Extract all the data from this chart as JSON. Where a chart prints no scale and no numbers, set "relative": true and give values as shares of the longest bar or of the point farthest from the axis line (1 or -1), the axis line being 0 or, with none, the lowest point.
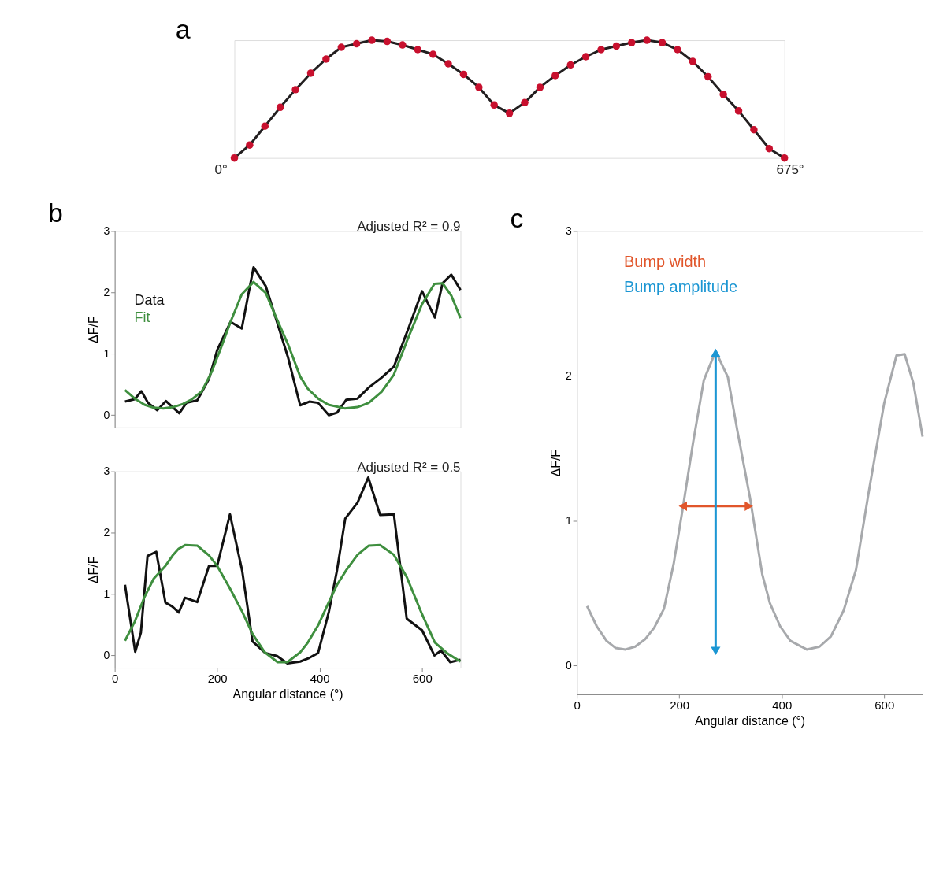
{
  "chart_data": [
    {
      "type": "line",
      "title": "a",
      "relative": true,
      "categories": [
        null,
        null,
        null,
        null,
        null,
        null,
        null,
        null,
        null,
        null,
        null,
        null,
        null,
        null,
        null,
        null,
        null,
        null,
        null,
        null,
        null,
        null,
        null,
        null,
        null,
        null,
        null,
        null,
        null,
        null,
        null,
        null,
        null,
        null,
        null,
        null,
        null
      ],
      "series": [
        {
          "color": "#231f20",
          "marker": "circle",
          "colors": [
            "#c8102e",
            "#c8102e",
            "#c8102e",
            "#c8102e",
            "#c8102e",
            "#c8102e",
            "#c8102e",
            "#c8102e",
            "#c8102e",
            "#c8102e",
            "#c8102e",
            "#c8102e",
            "#c8102e",
            "#c8102e",
            "#c8102e",
            "#c8102e",
            "#c8102e",
            "#c8102e",
            "#c8102e",
            "#c8102e",
            "#c8102e",
            "#c8102e",
            "#c8102e",
            "#c8102e",
            "#c8102e",
            "#c8102e",
            "#c8102e",
            "#c8102e",
            "#c8102e",
            "#c8102e",
            "#c8102e",
            "#c8102e",
            "#c8102e",
            "#c8102e",
            "#c8102e",
            "#c8102e",
            "#c8102e"
          ],
          "values": [
            0,
            0.11,
            0.27,
            0.43,
            0.58,
            0.72,
            0.84,
            0.94,
            0.97,
            1.0,
            0.99,
            0.96,
            0.92,
            0.88,
            0.8,
            0.71,
            0.6,
            0.45,
            0.38,
            0.47,
            0.6,
            0.7,
            0.79,
            0.86,
            0.92,
            0.95,
            0.98,
            1.0,
            0.98,
            0.92,
            0.82,
            0.69,
            0.54,
            0.4,
            0.24,
            0.08,
            0
          ]
        }
      ],
      "annotations": [
        "0°",
        "675°"
      ],
      "legend": false,
      "grid": false,
      "tick_labels": false
    },
    {
      "type": "line",
      "title": "b",
      "ylabel": "ΔF/F",
      "xlim": [
        0,
        675
      ],
      "ylim": [
        -0.2,
        3
      ],
      "yticks": [
        0,
        1,
        2,
        3
      ],
      "tick_labels": "y",
      "grid": false,
      "legend": "top left",
      "annotations": [
        "Adjusted R² = 0.9"
      ],
      "series": [
        {
          "name": "Data",
          "color": "#111111",
          "x": [
            20,
            39,
            52,
            65,
            83,
            100,
            126,
            140,
            161,
            184,
            200,
            226,
            248,
            271,
            295,
            338,
            362,
            380,
            397,
            418,
            434,
            452,
            474,
            496,
            521,
            545,
            575,
            600,
            625,
            640,
            657,
            675
          ],
          "values": [
            0.22,
            0.26,
            0.39,
            0.2,
            0.08,
            0.23,
            0.03,
            0.2,
            0.24,
            0.59,
            1.06,
            1.52,
            1.41,
            2.41,
            2.1,
            0.95,
            0.16,
            0.22,
            0.2,
            0.0,
            0.04,
            0.25,
            0.27,
            0.45,
            0.61,
            0.79,
            1.45,
            2.02,
            1.59,
            2.15,
            2.29,
            2.04
          ]
        },
        {
          "name": "Fit",
          "color": "#3f8f3f",
          "x": [
            20,
            39,
            58,
            76,
            95,
            114,
            133,
            151,
            170,
            189,
            208,
            227,
            248,
            271,
            295,
            313,
            338,
            362,
            377,
            397,
            417,
            449,
            474,
            496,
            521,
            545,
            570,
            600,
            624,
            640,
            657,
            675
          ],
          "values": [
            0.41,
            0.27,
            0.17,
            0.12,
            0.11,
            0.13,
            0.18,
            0.26,
            0.39,
            0.7,
            1.11,
            1.54,
            1.97,
            2.17,
            1.99,
            1.63,
            1.16,
            0.63,
            0.43,
            0.27,
            0.17,
            0.11,
            0.13,
            0.2,
            0.38,
            0.66,
            1.2,
            1.81,
            2.14,
            2.15,
            1.95,
            1.58
          ]
        }
      ]
    },
    {
      "type": "line",
      "ylabel": "ΔF/F",
      "xlabel": "Angular distance (°)",
      "xlim": [
        0,
        675
      ],
      "xticks": [
        0,
        200,
        400,
        600
      ],
      "ylim": [
        -0.2,
        3
      ],
      "yticks": [
        0,
        1,
        2,
        3
      ],
      "grid": false,
      "legend": false,
      "annotations": [
        "Adjusted R² = 0.5"
      ],
      "series": [
        {
          "color": "#111111",
          "x": [
            20,
            40,
            51,
            64,
            81,
            99,
            112,
            125,
            137,
            161,
            184,
            200,
            225,
            249,
            269,
            294,
            317,
            337,
            362,
            380,
            397,
            418,
            434,
            450,
            474,
            495,
            518,
            545,
            570,
            600,
            624,
            637,
            655,
            675
          ],
          "values": [
            1.15,
            0.06,
            0.37,
            1.62,
            1.69,
            0.86,
            0.8,
            0.7,
            0.94,
            0.87,
            1.46,
            1.46,
            2.3,
            1.37,
            0.23,
            0.04,
            -0.01,
            -0.13,
            -0.1,
            -0.04,
            0.04,
            0.71,
            1.39,
            2.23,
            2.49,
            2.9,
            2.29,
            2.3,
            0.6,
            0.41,
            0.0,
            0.08,
            -0.11,
            -0.07
          ]
        },
        {
          "color": "#3f8f3f",
          "x": [
            20,
            39,
            58,
            76,
            99,
            114,
            125,
            138,
            161,
            184,
            200,
            227,
            249,
            269,
            293,
            318,
            337,
            362,
            377,
            397,
            418,
            434,
            452,
            474,
            496,
            518,
            545,
            570,
            600,
            625,
            650,
            675
          ],
          "values": [
            0.24,
            0.55,
            0.95,
            1.25,
            1.46,
            1.64,
            1.74,
            1.8,
            1.79,
            1.63,
            1.46,
            1.06,
            0.71,
            0.35,
            0.05,
            -0.11,
            -0.11,
            0.05,
            0.21,
            0.49,
            0.87,
            1.15,
            1.39,
            1.64,
            1.79,
            1.8,
            1.64,
            1.28,
            0.67,
            0.21,
            0.03,
            -0.1
          ]
        }
      ]
    },
    {
      "type": "line",
      "title": "c",
      "ylabel": "ΔF/F",
      "xlabel": "Angular distance (°)",
      "xlim": [
        0,
        675
      ],
      "xticks": [
        0,
        200,
        400,
        600
      ],
      "ylim": [
        -0.2,
        3
      ],
      "yticks": [
        0,
        1,
        2,
        3
      ],
      "grid": false,
      "legend": "top left",
      "series": [
        {
          "color": "#a7a9ac",
          "x": [
            20,
            39,
            58,
            76,
            95,
            114,
            133,
            151,
            170,
            189,
            208,
            227,
            248,
            271,
            295,
            313,
            338,
            362,
            377,
            397,
            417,
            449,
            474,
            496,
            521,
            545,
            570,
            600,
            624,
            640,
            657,
            675
          ],
          "values": [
            0.41,
            0.27,
            0.17,
            0.12,
            0.11,
            0.13,
            0.18,
            0.26,
            0.39,
            0.7,
            1.11,
            1.54,
            1.97,
            2.17,
            1.99,
            1.63,
            1.16,
            0.63,
            0.43,
            0.27,
            0.17,
            0.11,
            0.13,
            0.2,
            0.38,
            0.66,
            1.2,
            1.81,
            2.14,
            2.15,
            1.95,
            1.58
          ]
        },
        {
          "name": "Bump width",
          "color": "#e1562b",
          "marker": "triangle",
          "x": [
            207,
            336
          ],
          "values": [
            1.1,
            1.1
          ]
        },
        {
          "name": "Bump amplitude",
          "color": "#1b96d3",
          "marker": "triangle",
          "x": [
            271,
            271
          ],
          "values": [
            0.1,
            2.16
          ]
        }
      ]
    }
  ]
}
